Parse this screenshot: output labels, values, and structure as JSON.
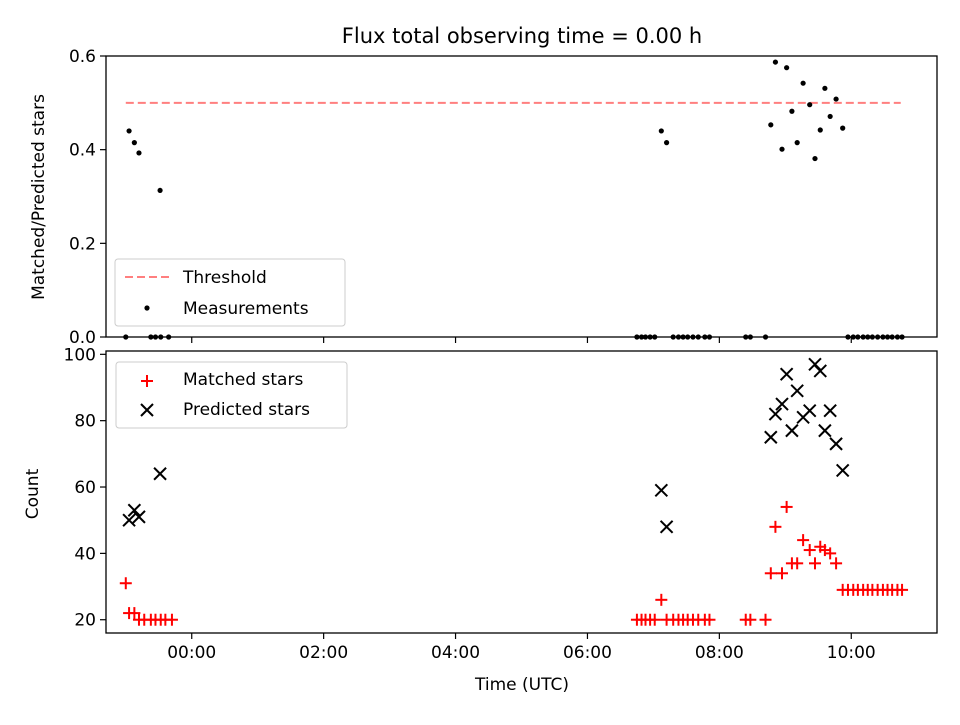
{
  "chart_data": [
    {
      "type": "scatter",
      "title": "Flux total observing time = 0.00 h",
      "xlabel": "",
      "ylabel": "Matched/Predicted stars",
      "xlim": [
        -1.3,
        11.3
      ],
      "ylim": [
        0.0,
        0.6
      ],
      "x_ticks": [
        0,
        2,
        4,
        6,
        8,
        10
      ],
      "y_ticks": [
        0.0,
        0.2,
        0.4,
        0.6
      ],
      "y_tick_labels": [
        "0.0",
        "0.2",
        "0.4",
        "0.6"
      ],
      "grid": false,
      "legend_position": "bottom-left",
      "threshold": {
        "name": "Threshold",
        "value": 0.5,
        "x_range": [
          -1.0,
          10.75
        ],
        "color": "#ff7f7f"
      },
      "series": [
        {
          "name": "Measurements",
          "color": "#000000",
          "marker": "dot",
          "points": [
            [
              -0.95,
              0.44
            ],
            [
              -0.87,
              0.415
            ],
            [
              -0.8,
              0.393
            ],
            [
              -0.62,
              0.0
            ],
            [
              -0.55,
              0.0
            ],
            [
              -0.47,
              0.0
            ],
            [
              -0.35,
              0.0
            ],
            [
              -1.0,
              0.0
            ],
            [
              -0.48,
              0.313
            ],
            [
              6.75,
              0.0
            ],
            [
              6.82,
              0.0
            ],
            [
              6.88,
              0.0
            ],
            [
              6.95,
              0.0
            ],
            [
              7.02,
              0.0
            ],
            [
              7.12,
              0.44
            ],
            [
              7.2,
              0.415
            ],
            [
              7.3,
              0.0
            ],
            [
              7.38,
              0.0
            ],
            [
              7.45,
              0.0
            ],
            [
              7.52,
              0.0
            ],
            [
              7.6,
              0.0
            ],
            [
              7.68,
              0.0
            ],
            [
              7.78,
              0.0
            ],
            [
              7.85,
              0.0
            ],
            [
              8.4,
              0.0
            ],
            [
              8.47,
              0.0
            ],
            [
              8.7,
              0.0
            ],
            [
              8.78,
              0.453
            ],
            [
              8.85,
              0.587
            ],
            [
              8.95,
              0.401
            ],
            [
              9.02,
              0.575
            ],
            [
              9.1,
              0.482
            ],
            [
              9.18,
              0.415
            ],
            [
              9.27,
              0.542
            ],
            [
              9.37,
              0.496
            ],
            [
              9.45,
              0.381
            ],
            [
              9.53,
              0.442
            ],
            [
              9.6,
              0.531
            ],
            [
              9.68,
              0.471
            ],
            [
              9.77,
              0.508
            ],
            [
              9.87,
              0.446
            ],
            [
              9.95,
              0.0
            ],
            [
              10.03,
              0.0
            ],
            [
              10.1,
              0.0
            ],
            [
              10.18,
              0.0
            ],
            [
              10.25,
              0.0
            ],
            [
              10.32,
              0.0
            ],
            [
              10.4,
              0.0
            ],
            [
              10.48,
              0.0
            ],
            [
              10.55,
              0.0
            ],
            [
              10.62,
              0.0
            ],
            [
              10.7,
              0.0
            ],
            [
              10.77,
              0.0
            ]
          ]
        }
      ]
    },
    {
      "type": "scatter",
      "title": "",
      "xlabel": "Time (UTC)",
      "ylabel": "Count",
      "xlim": [
        -1.3,
        11.3
      ],
      "ylim": [
        16,
        101
      ],
      "x_ticks": [
        0,
        2,
        4,
        6,
        8,
        10
      ],
      "x_tick_labels": [
        "00:00",
        "02:00",
        "04:00",
        "06:00",
        "08:00",
        "10:00"
      ],
      "y_ticks": [
        20,
        40,
        60,
        80,
        100
      ],
      "y_tick_labels": [
        "20",
        "40",
        "60",
        "80",
        "100"
      ],
      "grid": false,
      "legend_position": "top-left",
      "series": [
        {
          "name": "Matched stars",
          "color": "#ff0000",
          "marker": "plus",
          "points": [
            [
              -1.0,
              31
            ],
            [
              -0.95,
              22
            ],
            [
              -0.87,
              22
            ],
            [
              -0.8,
              20
            ],
            [
              -0.72,
              20
            ],
            [
              -0.62,
              20
            ],
            [
              -0.55,
              20
            ],
            [
              -0.47,
              20
            ],
            [
              -0.4,
              20
            ],
            [
              -0.3,
              20
            ],
            [
              6.75,
              20
            ],
            [
              6.82,
              20
            ],
            [
              6.88,
              20
            ],
            [
              6.95,
              20
            ],
            [
              7.02,
              20
            ],
            [
              7.12,
              26
            ],
            [
              7.2,
              20
            ],
            [
              7.3,
              20
            ],
            [
              7.38,
              20
            ],
            [
              7.45,
              20
            ],
            [
              7.52,
              20
            ],
            [
              7.6,
              20
            ],
            [
              7.68,
              20
            ],
            [
              7.78,
              20
            ],
            [
              7.85,
              20
            ],
            [
              8.4,
              20
            ],
            [
              8.47,
              20
            ],
            [
              8.7,
              20
            ],
            [
              8.78,
              34
            ],
            [
              8.85,
              48
            ],
            [
              8.95,
              34
            ],
            [
              9.02,
              54
            ],
            [
              9.1,
              37
            ],
            [
              9.18,
              37
            ],
            [
              9.27,
              44
            ],
            [
              9.37,
              41
            ],
            [
              9.45,
              37
            ],
            [
              9.53,
              42
            ],
            [
              9.6,
              41
            ],
            [
              9.68,
              40
            ],
            [
              9.77,
              37
            ],
            [
              9.87,
              29
            ],
            [
              9.95,
              29
            ],
            [
              10.03,
              29
            ],
            [
              10.1,
              29
            ],
            [
              10.18,
              29
            ],
            [
              10.25,
              29
            ],
            [
              10.32,
              29
            ],
            [
              10.4,
              29
            ],
            [
              10.48,
              29
            ],
            [
              10.55,
              29
            ],
            [
              10.62,
              29
            ],
            [
              10.7,
              29
            ],
            [
              10.77,
              29
            ]
          ]
        },
        {
          "name": "Predicted stars",
          "color": "#000000",
          "marker": "x",
          "points": [
            [
              -0.95,
              50
            ],
            [
              -0.87,
              53
            ],
            [
              -0.8,
              51
            ],
            [
              -0.48,
              64
            ],
            [
              7.12,
              59
            ],
            [
              7.2,
              48
            ],
            [
              8.78,
              75
            ],
            [
              8.85,
              82
            ],
            [
              8.95,
              85
            ],
            [
              9.02,
              94
            ],
            [
              9.1,
              77
            ],
            [
              9.18,
              89
            ],
            [
              9.27,
              81
            ],
            [
              9.37,
              83
            ],
            [
              9.45,
              97
            ],
            [
              9.53,
              95
            ],
            [
              9.6,
              77
            ],
            [
              9.68,
              83
            ],
            [
              9.77,
              73
            ],
            [
              9.87,
              65
            ]
          ]
        }
      ]
    }
  ]
}
